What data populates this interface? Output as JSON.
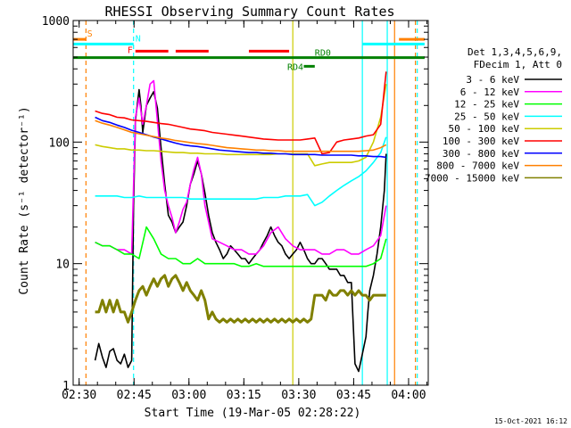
{
  "chart_data": {
    "type": "line",
    "title": "RHESSI Observing Summary Count Rates",
    "xlabel": "Start Time (19-Mar-05 02:28:22)",
    "ylabel": "Count Rate (s⁻¹ detector⁻¹)",
    "y_scale": "log",
    "ylim": [
      1,
      1000
    ],
    "xlim_minutes": [
      0,
      97
    ],
    "x_ticks": [
      {
        "minute": 1.63,
        "label": "02:30"
      },
      {
        "minute": 16.63,
        "label": "02:45"
      },
      {
        "minute": 31.63,
        "label": "03:00"
      },
      {
        "minute": 46.63,
        "label": "03:15"
      },
      {
        "minute": 61.63,
        "label": "03:30"
      },
      {
        "minute": 76.63,
        "label": "03:45"
      },
      {
        "minute": 91.63,
        "label": "04:00"
      }
    ],
    "y_ticks": [
      {
        "value": 1,
        "label": "1"
      },
      {
        "value": 10,
        "label": "10"
      },
      {
        "value": 100,
        "label": "100"
      },
      {
        "value": 1000,
        "label": "1000"
      }
    ],
    "legend_header": [
      "Det 1,3,4,5,6,9,",
      "FDecim 1, Att 0"
    ],
    "legend_position": "right",
    "series": [
      {
        "name": "3 - 6 keV",
        "color": "#000000",
        "x": [
          6,
          7,
          8,
          9,
          10,
          11,
          12,
          13,
          14,
          15,
          16,
          16.5,
          17,
          18,
          18.5,
          19,
          20,
          21,
          22,
          23,
          24,
          25,
          26,
          27,
          28,
          29,
          30,
          31,
          32,
          33,
          34,
          35,
          36,
          37,
          38,
          39,
          40,
          41,
          42,
          43,
          44,
          45,
          46,
          47,
          48,
          49,
          50,
          51,
          52,
          53,
          54,
          55,
          56,
          57,
          58,
          59,
          60,
          61,
          62,
          63,
          64,
          65,
          66,
          67,
          68,
          69,
          70,
          71,
          72,
          73,
          74,
          75,
          76,
          77,
          78,
          79,
          80,
          80.5,
          81,
          82,
          83,
          84,
          85,
          85.5
        ],
        "y": [
          1.6,
          2.2,
          1.7,
          1.4,
          1.9,
          2.0,
          1.6,
          1.5,
          1.8,
          1.4,
          1.6,
          30,
          150,
          270,
          200,
          120,
          200,
          230,
          260,
          190,
          90,
          45,
          25,
          22,
          18,
          20,
          22,
          30,
          45,
          55,
          70,
          55,
          38,
          25,
          18,
          15,
          13,
          11,
          12,
          14,
          13,
          12,
          11,
          11,
          10,
          11,
          12,
          13,
          15,
          17,
          20,
          17,
          15,
          14,
          12,
          11,
          12,
          13,
          15,
          13,
          11,
          10,
          10,
          11,
          11,
          10,
          9,
          9,
          9,
          8,
          8,
          7,
          7,
          1.5,
          1.3,
          1.8,
          2.5,
          4.0,
          6.0,
          8.0,
          12.0,
          20,
          40,
          80
        ]
      },
      {
        "name": "6 - 12 keV",
        "color": "#ff00ff",
        "x": [
          6,
          8,
          10,
          12,
          14,
          16,
          17,
          18,
          19,
          20,
          21,
          22,
          23,
          24,
          25,
          26,
          27,
          28,
          29,
          30,
          31,
          32,
          33,
          34,
          35,
          36,
          37,
          38,
          40,
          42,
          44,
          46,
          48,
          50,
          52,
          54,
          56,
          58,
          60,
          62,
          64,
          66,
          68,
          70,
          72,
          74,
          76,
          78,
          80,
          82,
          84,
          85.5
        ],
        "y": [
          15,
          14,
          14,
          13,
          13,
          12,
          160,
          230,
          140,
          200,
          300,
          320,
          150,
          70,
          40,
          30,
          24,
          18,
          22,
          28,
          32,
          45,
          60,
          75,
          55,
          30,
          22,
          16,
          15,
          14,
          13,
          13,
          12,
          12,
          14,
          18,
          20,
          16,
          14,
          13,
          13,
          13,
          12,
          12,
          13,
          13,
          12,
          12,
          13,
          14,
          17,
          30
        ]
      },
      {
        "name": "12 - 25 keV",
        "color": "#00ff00",
        "x": [
          6,
          8,
          10,
          12,
          14,
          16,
          18,
          20,
          22,
          24,
          26,
          28,
          30,
          32,
          34,
          36,
          38,
          40,
          42,
          44,
          46,
          48,
          50,
          52,
          54,
          56,
          58,
          60,
          62,
          64,
          66,
          68,
          70,
          72,
          74,
          76,
          78,
          80,
          82,
          84,
          85.5
        ],
        "y": [
          15,
          14,
          14,
          13,
          12,
          12,
          11,
          20,
          16,
          12,
          11,
          11,
          10,
          10,
          11,
          10,
          10,
          10,
          10,
          10,
          9.5,
          9.5,
          10,
          9.5,
          9.5,
          9.5,
          9.5,
          9.5,
          9.5,
          9.5,
          9.5,
          9.5,
          9.5,
          9.5,
          9.5,
          9.5,
          9.5,
          9.5,
          10,
          11,
          16
        ]
      },
      {
        "name": "25 - 50 keV",
        "color": "#00ffff",
        "x": [
          6,
          8,
          10,
          12,
          14,
          16,
          18,
          20,
          22,
          24,
          26,
          28,
          30,
          32,
          34,
          36,
          38,
          40,
          42,
          44,
          46,
          48,
          50,
          52,
          54,
          56,
          58,
          60,
          62,
          64,
          66,
          68,
          70,
          72,
          74,
          76,
          78,
          80,
          82,
          84,
          85.5
        ],
        "y": [
          36,
          36,
          36,
          36,
          35,
          35,
          36,
          35,
          35,
          35,
          35,
          35,
          35,
          34,
          34,
          34,
          34,
          34,
          34,
          34,
          34,
          34,
          34,
          35,
          35,
          35,
          36,
          36,
          36,
          37,
          30,
          32,
          36,
          40,
          44,
          48,
          52,
          58,
          68,
          82,
          110
        ]
      },
      {
        "name": "50 - 100 keV",
        "color": "#cccc00",
        "x": [
          6,
          8,
          10,
          12,
          14,
          16,
          18,
          20,
          22,
          24,
          26,
          28,
          30,
          32,
          34,
          36,
          38,
          40,
          42,
          44,
          46,
          48,
          50,
          52,
          54,
          56,
          58,
          60,
          62,
          64,
          66,
          68,
          70,
          72,
          74,
          76,
          78,
          80,
          82,
          84,
          85.5
        ],
        "y": [
          95,
          92,
          90,
          88,
          88,
          86,
          86,
          85,
          85,
          84,
          83,
          82,
          82,
          81,
          81,
          80,
          80,
          80,
          79,
          79,
          79,
          79,
          79,
          79,
          79,
          80,
          80,
          80,
          80,
          80,
          64,
          66,
          68,
          68,
          68,
          68,
          70,
          75,
          100,
          160,
          300
        ]
      },
      {
        "name": "100 - 300 keV",
        "color": "#ff0000",
        "x": [
          6,
          8,
          10,
          12,
          14,
          16,
          18,
          20,
          22,
          24,
          26,
          28,
          30,
          32,
          34,
          36,
          38,
          40,
          42,
          44,
          46,
          48,
          50,
          52,
          54,
          56,
          58,
          60,
          62,
          64,
          66,
          68,
          70,
          72,
          74,
          76,
          78,
          80,
          82,
          84,
          85.5
        ],
        "y": [
          180,
          172,
          168,
          160,
          158,
          152,
          150,
          148,
          145,
          142,
          140,
          136,
          132,
          128,
          126,
          124,
          120,
          118,
          116,
          114,
          112,
          110,
          108,
          106,
          105,
          104,
          104,
          104,
          104,
          106,
          108,
          80,
          82,
          100,
          104,
          106,
          108,
          112,
          115,
          140,
          380
        ]
      },
      {
        "name": "300 - 800 keV",
        "color": "#0000ff",
        "x": [
          6,
          8,
          10,
          12,
          14,
          16,
          18,
          20,
          22,
          24,
          26,
          28,
          30,
          32,
          34,
          36,
          38,
          40,
          42,
          44,
          46,
          48,
          50,
          52,
          54,
          56,
          58,
          60,
          62,
          64,
          66,
          68,
          70,
          72,
          74,
          76,
          78,
          80,
          82,
          84,
          85.5
        ],
        "y": [
          160,
          150,
          145,
          138,
          132,
          125,
          120,
          115,
          110,
          106,
          102,
          98,
          95,
          93,
          92,
          90,
          88,
          86,
          85,
          84,
          83,
          82,
          82,
          81,
          81,
          80,
          80,
          79,
          79,
          79,
          79,
          78,
          78,
          78,
          78,
          78,
          77,
          77,
          76,
          76,
          75
        ]
      },
      {
        "name": "800 - 7000 keV",
        "color": "#ff8000",
        "x": [
          6,
          8,
          10,
          12,
          14,
          16,
          18,
          20,
          22,
          24,
          26,
          28,
          30,
          32,
          34,
          36,
          38,
          40,
          42,
          44,
          46,
          48,
          50,
          52,
          54,
          56,
          58,
          60,
          62,
          64,
          66,
          68,
          70,
          72,
          74,
          76,
          78,
          80,
          82,
          84,
          85.5
        ],
        "y": [
          150,
          143,
          138,
          132,
          126,
          120,
          117,
          114,
          111,
          108,
          106,
          103,
          101,
          99,
          97,
          96,
          94,
          92,
          90,
          89,
          88,
          87,
          86,
          86,
          85,
          85,
          84,
          84,
          84,
          84,
          84,
          84,
          84,
          84,
          84,
          84,
          84,
          85,
          86,
          90,
          95
        ]
      },
      {
        "name": "7000 - 15000 keV",
        "color": "#808000",
        "x": [
          6,
          7,
          8,
          9,
          10,
          11,
          12,
          13,
          14,
          15,
          16,
          17,
          18,
          19,
          20,
          21,
          22,
          23,
          24,
          25,
          26,
          27,
          28,
          29,
          30,
          31,
          32,
          33,
          34,
          35,
          36,
          37,
          38,
          39,
          40,
          41,
          42,
          43,
          44,
          45,
          46,
          47,
          48,
          49,
          50,
          51,
          52,
          53,
          54,
          55,
          56,
          57,
          58,
          59,
          60,
          61,
          62,
          63,
          64,
          65,
          66,
          67,
          68,
          69,
          70,
          71,
          72,
          73,
          74,
          75,
          76,
          77,
          78,
          79,
          80,
          81,
          82,
          83,
          84,
          85.5
        ],
        "y": [
          4,
          4,
          5,
          4,
          5,
          4,
          5,
          4,
          4,
          3.3,
          4,
          5,
          6,
          6.5,
          5.5,
          6.5,
          7.5,
          6.5,
          7.5,
          8.0,
          6.5,
          7.5,
          8.0,
          7.0,
          6.0,
          7.0,
          6.0,
          5.5,
          5.0,
          6.0,
          5.0,
          3.5,
          4.0,
          3.5,
          3.3,
          3.5,
          3.3,
          3.5,
          3.3,
          3.5,
          3.3,
          3.5,
          3.3,
          3.5,
          3.3,
          3.5,
          3.3,
          3.5,
          3.3,
          3.5,
          3.3,
          3.5,
          3.3,
          3.5,
          3.3,
          3.5,
          3.3,
          3.5,
          3.3,
          3.5,
          5.5,
          5.5,
          5.5,
          5.0,
          6.0,
          5.5,
          5.5,
          6.0,
          6.0,
          5.5,
          6.0,
          5.5,
          6.0,
          5.5,
          5.5,
          5.0,
          5.5,
          5.5,
          5.5,
          5.5
        ]
      }
    ],
    "flag_bars": [
      {
        "label": "S",
        "color": "#ff8000",
        "segments": [
          [
            0,
            3.5
          ],
          [
            89,
            96
          ]
        ],
        "level": 700
      },
      {
        "label": "N",
        "color": "#00ffff",
        "segments": [
          [
            0,
            16.5
          ],
          [
            79,
            96
          ]
        ],
        "level": 640
      },
      {
        "label": "F",
        "color": "#ff0000",
        "segments": [
          [
            17,
            26
          ],
          [
            28,
            37
          ],
          [
            48,
            59
          ]
        ],
        "level": 560
      },
      {
        "label": "RD0",
        "color": "#008000",
        "segments": [
          [
            0,
            96
          ]
        ],
        "level": 495
      },
      {
        "label": "RD4",
        "color": "#008000",
        "segments": [
          [
            63,
            66
          ]
        ],
        "level": 420
      }
    ],
    "vertical_markers": [
      {
        "minute": 3.5,
        "color": "#ff8000",
        "style": "dashed"
      },
      {
        "minute": 16.5,
        "color": "#00ffff",
        "style": "dashed"
      },
      {
        "minute": 60,
        "color": "#cccc00",
        "style": "solid"
      },
      {
        "minute": 79,
        "color": "#00ffff",
        "style": "solid"
      },
      {
        "minute": 85.8,
        "color": "#00ffff",
        "style": "solid"
      },
      {
        "minute": 87.8,
        "color": "#ff8000",
        "style": "solid"
      },
      {
        "minute": 93.5,
        "color": "#ff8000",
        "style": "dashed"
      },
      {
        "minute": 94,
        "color": "#00ffff",
        "style": "dashed"
      }
    ]
  },
  "footer": {
    "timestamp": "15-Oct-2021 16:12"
  }
}
